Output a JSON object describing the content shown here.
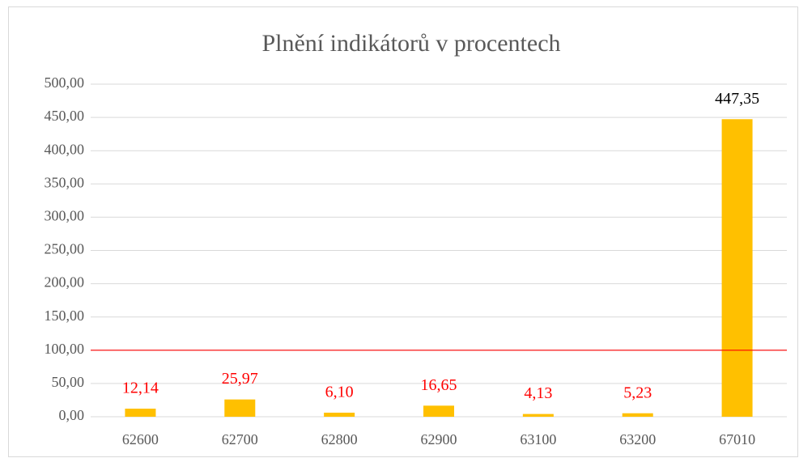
{
  "chart_data": {
    "type": "bar",
    "title": "Plnění indikátorů v procentech",
    "categories": [
      "62600",
      "62700",
      "62800",
      "62900",
      "63100",
      "63200",
      "67010"
    ],
    "values": [
      12.14,
      25.97,
      6.1,
      16.65,
      4.13,
      5.23,
      447.35
    ],
    "value_labels": [
      "12,14",
      "25,97",
      "6,10",
      "16,65",
      "4,13",
      "5,23",
      "447,35"
    ],
    "value_label_colors": [
      "#ff0000",
      "#ff0000",
      "#ff0000",
      "#ff0000",
      "#ff0000",
      "#ff0000",
      "#000000"
    ],
    "color": "#ffc000",
    "ylim": [
      0,
      500
    ],
    "yticks": [
      {
        "value": 0,
        "label": "0,00"
      },
      {
        "value": 50,
        "label": "50,00"
      },
      {
        "value": 100,
        "label": "100,00"
      },
      {
        "value": 150,
        "label": "150,00"
      },
      {
        "value": 200,
        "label": "200,00"
      },
      {
        "value": 250,
        "label": "250,00"
      },
      {
        "value": 300,
        "label": "300,00"
      },
      {
        "value": 350,
        "label": "350,00"
      },
      {
        "value": 400,
        "label": "400,00"
      },
      {
        "value": 450,
        "label": "450,00"
      },
      {
        "value": 500,
        "label": "500,00"
      }
    ],
    "grid": true,
    "reference_line": {
      "value": 100,
      "color": "#ff0000"
    }
  }
}
